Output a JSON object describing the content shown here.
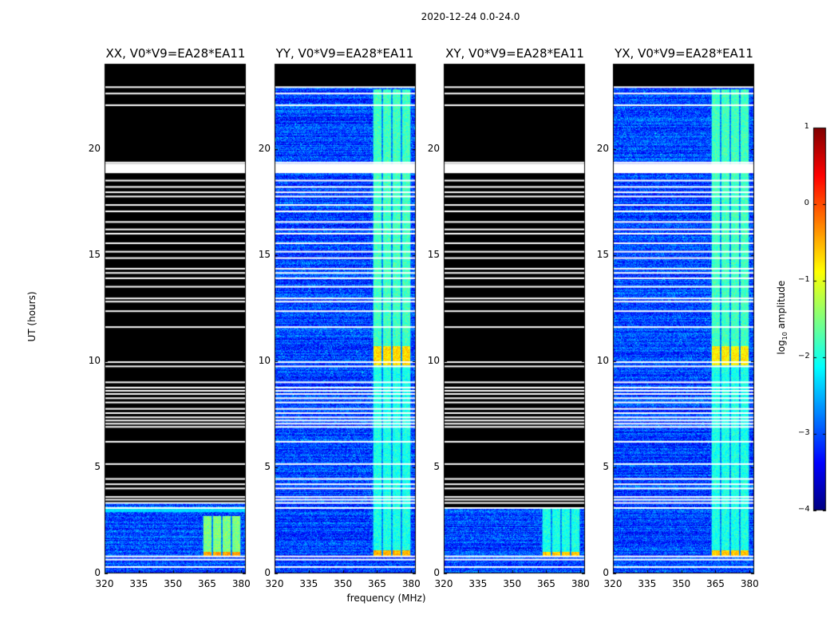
{
  "figure_title": "2020-12-24 0.0-24.0",
  "colors": {
    "background_flagged": "#000000",
    "gap": "#ffffff",
    "colormap": "jet"
  },
  "chart_data": {
    "type": "heatmap",
    "suptitle": "2020-12-24 0.0-24.0",
    "xlabel": "frequency (MHz)",
    "ylabel": "UT (hours)",
    "xlim": [
      320,
      382
    ],
    "ylim": [
      0,
      24
    ],
    "xticks": [
      "320",
      "335",
      "350",
      "365",
      "380"
    ],
    "yticks": [
      "0",
      "5",
      "10",
      "15",
      "20"
    ],
    "xtick_values": [
      320,
      335,
      350,
      365,
      380
    ],
    "ytick_values": [
      0,
      5,
      10,
      15,
      20
    ],
    "colorbar": {
      "label": "log₁₀ amplitude",
      "label_base": "log",
      "label_sub": "10",
      "label_rest": " amplitude",
      "range": [
        -4,
        1
      ],
      "ticks": [
        "1",
        "0",
        "−1",
        "−2",
        "−3",
        "−4"
      ],
      "tick_values": [
        1,
        0,
        -1,
        -2,
        -3,
        -4
      ]
    },
    "band": {
      "start_mhz": 363,
      "end_mhz": 380,
      "n_channels": 4
    },
    "gap_hours": [
      0.3,
      0.65,
      0.8,
      3.08,
      3.32,
      3.47,
      3.6,
      4.0,
      4.2,
      4.45,
      5.15,
      6.2,
      6.9,
      7.05,
      7.2,
      7.35,
      7.55,
      7.75,
      8.05,
      8.25,
      8.45,
      8.6,
      8.75,
      9.0,
      9.75,
      9.95,
      11.6,
      12.35,
      12.8,
      12.95,
      13.5,
      13.9,
      14.15,
      14.35,
      14.85,
      15.15,
      15.55,
      16.0,
      16.2,
      16.55,
      17.05,
      17.35,
      17.75,
      17.95,
      18.2,
      18.5,
      18.9,
      19.15,
      19.35,
      22.05,
      22.6,
      22.9
    ],
    "flag_bands_hours": [
      [
        18.85,
        19.3
      ]
    ],
    "panels": [
      {
        "name": "xx",
        "title": "XX, V0*V9=EA28*EA11",
        "data_hours": [
          [
            0.0,
            3.3
          ]
        ],
        "band_hours": [
          [
            0.8,
            2.7
          ]
        ],
        "band_level": [
          [
            0.8,
            1.0,
            -0.4
          ],
          [
            1.0,
            2.7,
            -1.5
          ]
        ],
        "stripe": {
          "hours": [
            2.9,
            3.1
          ],
          "level": -2.3
        }
      },
      {
        "name": "yy",
        "title": "YY, V0*V9=EA28*EA11",
        "data_hours": [
          [
            0.0,
            22.9
          ]
        ],
        "band_hours": [
          [
            0.8,
            22.8
          ]
        ],
        "band_level": [
          [
            0.8,
            1.1,
            -0.5
          ],
          [
            1.1,
            9.8,
            -2.0
          ],
          [
            9.8,
            10.7,
            -0.7
          ],
          [
            10.7,
            22.8,
            -1.8
          ]
        ],
        "stripe": null
      },
      {
        "name": "xy",
        "title": "XY, V0*V9=EA28*EA11",
        "data_hours": [
          [
            0.0,
            3.1
          ]
        ],
        "band_hours": [
          [
            0.8,
            3.1
          ]
        ],
        "band_level": [
          [
            0.8,
            1.0,
            -0.6
          ],
          [
            1.0,
            3.1,
            -2.0
          ]
        ],
        "stripe": null
      },
      {
        "name": "yx",
        "title": "YX, V0*V9=EA28*EA11",
        "data_hours": [
          [
            0.0,
            22.9
          ]
        ],
        "band_hours": [
          [
            0.8,
            22.8
          ]
        ],
        "band_level": [
          [
            0.8,
            1.1,
            -0.6
          ],
          [
            1.1,
            9.8,
            -2.0
          ],
          [
            9.8,
            10.7,
            -0.8
          ],
          [
            10.7,
            22.8,
            -1.8
          ]
        ],
        "stripe": null
      }
    ]
  }
}
